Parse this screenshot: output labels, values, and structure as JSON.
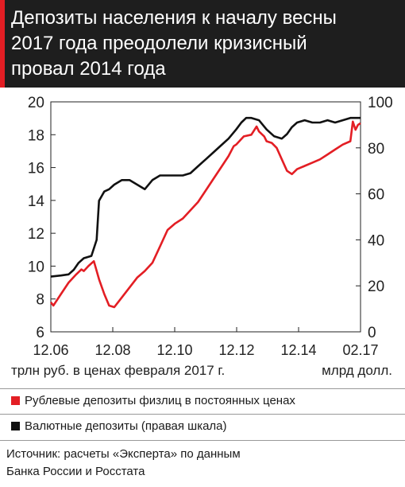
{
  "title_lines": [
    "Депозиты населения к началу весны",
    "2017 года преодолели кризисный",
    "провал 2014 года"
  ],
  "colors": {
    "ruble": "#e31e24",
    "fx": "#111111",
    "title_bg": "#1e1e1e"
  },
  "legend": [
    {
      "label": "Рублевые депозиты физлиц в постоянных ценах",
      "color": "#e31e24"
    },
    {
      "label": "Валютные депозиты (правая шкала)",
      "color": "#111111"
    }
  ],
  "source_lines": [
    "Источник: расчеты «Эксперта» по данным",
    "Банка России и Росстата"
  ],
  "chart_data": {
    "type": "line",
    "xlabel": "трлн руб. в ценах февраля 2017 г.",
    "ylabel_right": "млрд долл.",
    "x_ticks": [
      "12.06",
      "12.08",
      "12.10",
      "12.12",
      "12.14",
      "02.17"
    ],
    "x_range": [
      2006.917,
      2017.083
    ],
    "y_left_range": [
      6,
      20
    ],
    "y_left_ticks": [
      "6",
      "8",
      "10",
      "12",
      "14",
      "16",
      "18",
      "20"
    ],
    "y_right_range": [
      0,
      100
    ],
    "y_right_ticks": [
      "0",
      "20",
      "40",
      "60",
      "80",
      "100"
    ],
    "series": [
      {
        "name": "Рублевые депозиты физлиц в постоянных ценах",
        "axis": "left",
        "points": [
          [
            2006.917,
            7.8
          ],
          [
            2007.0,
            7.6
          ],
          [
            2007.25,
            8.3
          ],
          [
            2007.5,
            9.0
          ],
          [
            2007.75,
            9.5
          ],
          [
            2007.92,
            9.8
          ],
          [
            2008.0,
            9.7
          ],
          [
            2008.15,
            10.0
          ],
          [
            2008.33,
            10.3
          ],
          [
            2008.5,
            9.2
          ],
          [
            2008.67,
            8.3
          ],
          [
            2008.83,
            7.6
          ],
          [
            2009.0,
            7.5
          ],
          [
            2009.25,
            8.1
          ],
          [
            2009.5,
            8.7
          ],
          [
            2009.75,
            9.3
          ],
          [
            2010.0,
            9.7
          ],
          [
            2010.25,
            10.2
          ],
          [
            2010.5,
            11.2
          ],
          [
            2010.75,
            12.2
          ],
          [
            2011.0,
            12.6
          ],
          [
            2011.25,
            12.9
          ],
          [
            2011.5,
            13.4
          ],
          [
            2011.75,
            13.9
          ],
          [
            2012.0,
            14.6
          ],
          [
            2012.25,
            15.3
          ],
          [
            2012.5,
            16.0
          ],
          [
            2012.75,
            16.7
          ],
          [
            2012.92,
            17.3
          ],
          [
            2013.0,
            17.4
          ],
          [
            2013.25,
            17.9
          ],
          [
            2013.5,
            18.0
          ],
          [
            2013.67,
            18.5
          ],
          [
            2013.75,
            18.2
          ],
          [
            2013.92,
            17.9
          ],
          [
            2014.0,
            17.6
          ],
          [
            2014.17,
            17.5
          ],
          [
            2014.33,
            17.2
          ],
          [
            2014.5,
            16.5
          ],
          [
            2014.67,
            15.8
          ],
          [
            2014.83,
            15.6
          ],
          [
            2015.0,
            15.9
          ],
          [
            2015.25,
            16.1
          ],
          [
            2015.5,
            16.3
          ],
          [
            2015.75,
            16.5
          ],
          [
            2016.0,
            16.8
          ],
          [
            2016.25,
            17.1
          ],
          [
            2016.5,
            17.4
          ],
          [
            2016.75,
            17.6
          ],
          [
            2016.83,
            18.8
          ],
          [
            2016.92,
            18.3
          ],
          [
            2017.0,
            18.6
          ],
          [
            2017.083,
            18.7
          ]
        ]
      },
      {
        "name": "Валютные депозиты (правая шкала)",
        "axis": "right",
        "points": [
          [
            2006.917,
            24
          ],
          [
            2007.25,
            24.5
          ],
          [
            2007.5,
            25
          ],
          [
            2007.67,
            27
          ],
          [
            2007.83,
            30
          ],
          [
            2008.0,
            32
          ],
          [
            2008.25,
            33
          ],
          [
            2008.42,
            40
          ],
          [
            2008.5,
            57
          ],
          [
            2008.67,
            61
          ],
          [
            2008.83,
            62
          ],
          [
            2009.0,
            64
          ],
          [
            2009.25,
            66
          ],
          [
            2009.5,
            66
          ],
          [
            2009.75,
            64
          ],
          [
            2010.0,
            62
          ],
          [
            2010.25,
            66
          ],
          [
            2010.5,
            68
          ],
          [
            2010.75,
            68
          ],
          [
            2011.0,
            68
          ],
          [
            2011.25,
            68
          ],
          [
            2011.5,
            69
          ],
          [
            2011.75,
            72
          ],
          [
            2012.0,
            75
          ],
          [
            2012.25,
            78
          ],
          [
            2012.5,
            81
          ],
          [
            2012.75,
            84
          ],
          [
            2013.0,
            88
          ],
          [
            2013.17,
            91
          ],
          [
            2013.33,
            93
          ],
          [
            2013.5,
            93
          ],
          [
            2013.75,
            92
          ],
          [
            2014.0,
            88
          ],
          [
            2014.25,
            85
          ],
          [
            2014.5,
            84
          ],
          [
            2014.67,
            86
          ],
          [
            2014.83,
            89
          ],
          [
            2015.0,
            91
          ],
          [
            2015.25,
            92
          ],
          [
            2015.5,
            91
          ],
          [
            2015.75,
            91
          ],
          [
            2016.0,
            92
          ],
          [
            2016.25,
            91
          ],
          [
            2016.5,
            92
          ],
          [
            2016.75,
            93
          ],
          [
            2017.0,
            93
          ],
          [
            2017.083,
            93
          ]
        ]
      }
    ]
  }
}
